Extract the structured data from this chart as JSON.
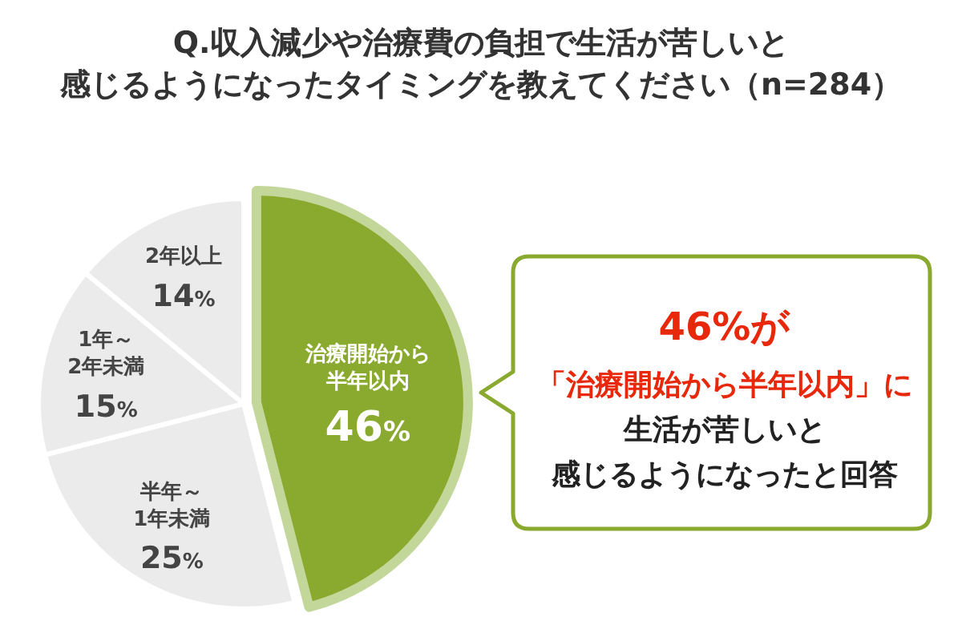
{
  "chart_data": {
    "type": "pie",
    "title": "Q.収入減少や治療費の負担で生活が苦しいと",
    "subtitle": "感じるようになったタイミングを教えてください（n=284）",
    "categories": [
      "治療開始から半年以内",
      "半年～\n1年未満",
      "1年～\n2年未満",
      "2年以上"
    ],
    "values": [
      46,
      25,
      15,
      14
    ],
    "value_labels": [
      "46%",
      "25%",
      "15%",
      "14%"
    ],
    "colors": [
      "#8aaa2f",
      "#ebebeb",
      "#ebebeb",
      "#ebebeb"
    ],
    "annotations": [
      "46%が",
      "「治療開始から半年以内」に",
      "生活が苦しいと",
      "感じるようになったと回答"
    ]
  }
}
